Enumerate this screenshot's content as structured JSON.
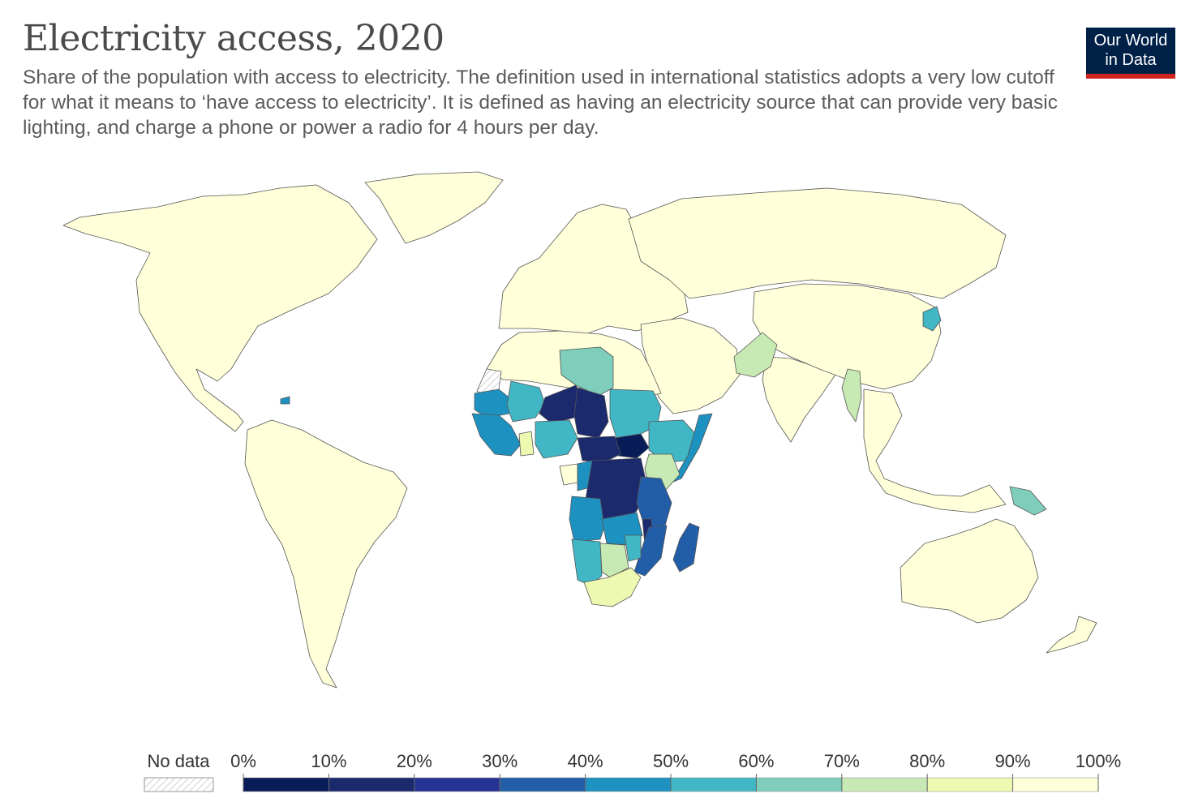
{
  "title": "Electricity access, 2020",
  "subtitle": "Share of the population with access to electricity. The definition used in international statistics adopts a very low cutoff for what it means to ‘have access to electricity’. It is defined as having an electricity source that can provide very basic lighting, and charge a phone or power a radio for 4 hours per day.",
  "logo": {
    "line1": "Our World",
    "line2": "in Data",
    "bg": "#002147",
    "accent": "#ce261e"
  },
  "legend": {
    "no_data_label": "No data",
    "ticks": [
      "0%",
      "10%",
      "20%",
      "30%",
      "40%",
      "50%",
      "60%",
      "70%",
      "80%",
      "90%",
      "100%"
    ],
    "bins": [
      {
        "from": 0,
        "to": 10,
        "color": "#081d58"
      },
      {
        "from": 10,
        "to": 20,
        "color": "#1a2a6c"
      },
      {
        "from": 20,
        "to": 30,
        "color": "#253494"
      },
      {
        "from": 30,
        "to": 40,
        "color": "#225ea8"
      },
      {
        "from": 40,
        "to": 50,
        "color": "#1d91c0"
      },
      {
        "from": 50,
        "to": 60,
        "color": "#41b6c4"
      },
      {
        "from": 60,
        "to": 70,
        "color": "#7fcdbb"
      },
      {
        "from": 70,
        "to": 80,
        "color": "#c7e9b4"
      },
      {
        "from": 80,
        "to": 90,
        "color": "#edf8b1"
      },
      {
        "from": 90,
        "to": 100,
        "color": "#ffffd9"
      }
    ]
  },
  "map": {
    "regions": [
      {
        "name": "north-america",
        "level": 100
      },
      {
        "name": "greenland",
        "level": 100
      },
      {
        "name": "south-america",
        "level": 100
      },
      {
        "name": "europe",
        "level": 100
      },
      {
        "name": "russia",
        "level": 100
      },
      {
        "name": "middle-east",
        "level": 100
      },
      {
        "name": "south-asia",
        "level": 100
      },
      {
        "name": "east-asia",
        "level": 100
      },
      {
        "name": "southeast-asia",
        "level": 100
      },
      {
        "name": "australia",
        "level": 100
      },
      {
        "name": "new-zealand",
        "level": 100
      },
      {
        "name": "north-africa",
        "level": 100
      },
      {
        "name": "libya",
        "level": 69
      },
      {
        "name": "mauritania",
        "level": 47
      },
      {
        "name": "mali",
        "level": 51
      },
      {
        "name": "niger",
        "level": 19
      },
      {
        "name": "chad",
        "level": 11
      },
      {
        "name": "sudan",
        "level": 55
      },
      {
        "name": "south-sudan",
        "level": 7
      },
      {
        "name": "ethiopia",
        "level": 54
      },
      {
        "name": "somalia",
        "level": 49
      },
      {
        "name": "kenya",
        "level": 71
      },
      {
        "name": "west-africa-coast",
        "level": 50
      },
      {
        "name": "nigeria",
        "level": 55
      },
      {
        "name": "ghana",
        "level": 86
      },
      {
        "name": "central-african-republic",
        "level": 15
      },
      {
        "name": "dr-congo",
        "level": 19
      },
      {
        "name": "congo",
        "level": 50
      },
      {
        "name": "gabon",
        "level": 92
      },
      {
        "name": "tanzania",
        "level": 40
      },
      {
        "name": "angola",
        "level": 47
      },
      {
        "name": "zambia",
        "level": 44
      },
      {
        "name": "malawi",
        "level": 14
      },
      {
        "name": "mozambique",
        "level": 31
      },
      {
        "name": "madagascar",
        "level": 34
      },
      {
        "name": "namibia",
        "level": 56
      },
      {
        "name": "botswana",
        "level": 72
      },
      {
        "name": "zimbabwe",
        "level": 52
      },
      {
        "name": "south-africa",
        "level": 84
      },
      {
        "name": "pakistan",
        "level": 73
      },
      {
        "name": "myanmar",
        "level": 73
      },
      {
        "name": "north-korea",
        "level": 52
      },
      {
        "name": "papua-new-guinea",
        "level": 62
      },
      {
        "name": "haiti",
        "level": 46
      },
      {
        "name": "western-sahara",
        "level": null
      }
    ]
  }
}
